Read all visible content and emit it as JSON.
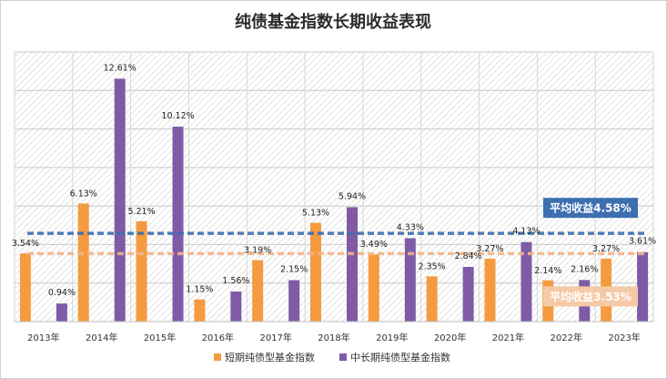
{
  "chart_data": {
    "type": "bar",
    "title": "纯债基金指数长期收益表现",
    "categories": [
      "2013年",
      "2014年",
      "2015年",
      "2016年",
      "2017年",
      "2018年",
      "2019年",
      "2020年",
      "2021年",
      "2022年",
      "2023年"
    ],
    "series": [
      {
        "name": "短期纯债型基金指数",
        "color": "#f49b3f",
        "values": [
          3.54,
          6.13,
          5.21,
          1.15,
          3.19,
          5.13,
          3.49,
          2.35,
          3.27,
          2.14,
          3.27
        ],
        "labels": [
          "3.54%",
          "6.13%",
          "5.21%",
          "1.15%",
          "3.19%",
          "5.13%",
          "3.49%",
          "2.35%",
          "3.27%",
          "2.14%",
          "3.27%"
        ]
      },
      {
        "name": "中长期纯债型基金指数",
        "color": "#7f5ba6",
        "values": [
          0.94,
          12.61,
          10.12,
          1.56,
          2.15,
          5.94,
          4.33,
          2.84,
          4.13,
          2.16,
          3.61
        ],
        "labels": [
          "0.94%",
          "12.61%",
          "10.12%",
          "1.56%",
          "2.15%",
          "5.94%",
          "4.33%",
          "2.84%",
          "4.13%",
          "2.16%",
          "3.61%"
        ]
      }
    ],
    "ylim": [
      0,
      14
    ],
    "grid": true,
    "legend": "bottom",
    "reference_lines": [
      {
        "label": "平均收益4.58%",
        "value": 4.58,
        "color": "#3d6fb0",
        "box_color": "#3d6fb0"
      },
      {
        "label": "平均收益3.53%",
        "value": 3.53,
        "color": "#f1b58a",
        "box_color": "#f6c9a6"
      }
    ]
  }
}
